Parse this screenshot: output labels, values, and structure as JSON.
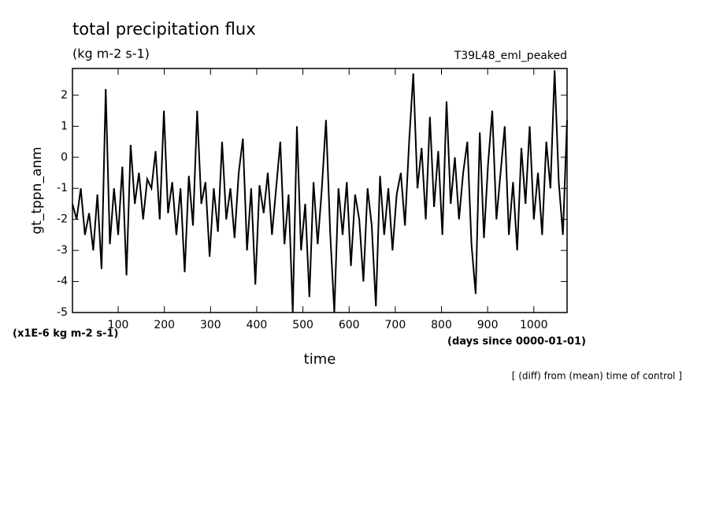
{
  "chart_data": {
    "type": "line",
    "title": "total precipitation flux",
    "subtitle": "(kg m-2 s-1)",
    "run_label": "T39L48_eml_peaked",
    "y_label": "gt_tppn_anm",
    "y_unit_label": "(x1E-6 kg m-2 s-1)",
    "x_label": "time",
    "x_unit_label": "(days since 0000-01-01)",
    "footnote": "[ (diff) from (mean) time of control ]",
    "x": [
      1,
      10,
      19,
      28,
      37,
      46,
      55,
      64,
      73,
      82,
      91,
      100,
      109,
      118,
      127,
      136,
      145,
      154,
      163,
      172,
      181,
      190,
      199,
      208,
      217,
      226,
      235,
      244,
      253,
      262,
      271,
      280,
      289,
      298,
      307,
      316,
      325,
      334,
      343,
      352,
      361,
      370,
      379,
      388,
      397,
      406,
      415,
      424,
      433,
      442,
      451,
      460,
      469,
      478,
      487,
      496,
      505,
      514,
      523,
      532,
      541,
      550,
      559,
      568,
      577,
      586,
      595,
      604,
      613,
      622,
      631,
      640,
      649,
      658,
      667,
      676,
      685,
      694,
      703,
      712,
      721,
      730,
      739,
      748,
      757,
      766,
      775,
      784,
      793,
      802,
      811,
      820,
      829,
      838,
      847,
      856,
      865,
      874,
      883,
      892,
      901,
      910,
      919,
      928,
      937,
      946,
      955,
      964,
      973,
      982,
      991,
      1000,
      1009,
      1018,
      1027,
      1036,
      1045,
      1054,
      1063,
      1072
    ],
    "series": [
      {
        "color": "#000000",
        "values": [
          -1.5,
          -2.0,
          -1.0,
          -2.5,
          -1.8,
          -3.0,
          -1.2,
          -3.6,
          2.2,
          -2.8,
          -1.0,
          -2.5,
          -0.3,
          -3.8,
          0.4,
          -1.5,
          -0.5,
          -2.0,
          -0.7,
          -1.0,
          0.2,
          -2.0,
          1.5,
          -1.8,
          -0.8,
          -2.5,
          -1.0,
          -3.7,
          -0.6,
          -2.2,
          1.5,
          -1.5,
          -0.8,
          -3.2,
          -1.0,
          -2.4,
          0.5,
          -2.0,
          -1.0,
          -2.6,
          -0.5,
          0.6,
          -3.0,
          -1.0,
          -4.1,
          -0.9,
          -1.8,
          -0.5,
          -2.5,
          -1.0,
          0.5,
          -2.8,
          -1.2,
          -5.0,
          1.0,
          -3.0,
          -1.5,
          -4.5,
          -0.8,
          -2.8,
          -1.0,
          1.2,
          -2.4,
          -5.0,
          -1.0,
          -2.5,
          -0.8,
          -3.5,
          -1.2,
          -2.0,
          -4.0,
          -1.0,
          -2.2,
          -4.8,
          -0.6,
          -2.5,
          -1.0,
          -3.0,
          -1.2,
          -0.5,
          -2.2,
          0.5,
          2.7,
          -1.0,
          0.3,
          -2.0,
          1.3,
          -1.6,
          0.2,
          -2.5,
          1.8,
          -1.5,
          0.0,
          -2.0,
          -0.5,
          0.5,
          -2.8,
          -4.4,
          0.8,
          -2.6,
          -0.2,
          1.5,
          -2.0,
          -0.5,
          1.0,
          -2.5,
          -0.8,
          -3.0,
          0.3,
          -1.5,
          1.0,
          -2.0,
          -0.5,
          -2.5,
          0.5,
          -1.0,
          2.8,
          -0.8,
          -2.5,
          1.2
        ]
      }
    ],
    "xlim": [
      1,
      1072
    ],
    "ylim": [
      -5,
      2.86
    ],
    "xticks": [
      100,
      200,
      300,
      400,
      500,
      600,
      700,
      800,
      900,
      1000
    ],
    "yticks": [
      -5,
      -4,
      -3,
      -2,
      -1,
      0,
      1,
      2
    ]
  }
}
